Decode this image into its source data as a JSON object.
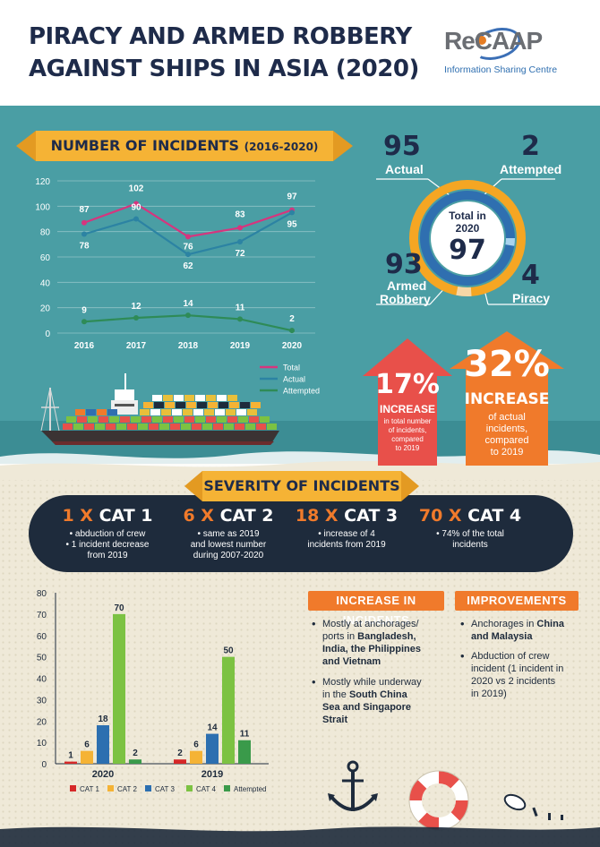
{
  "header": {
    "title_line1": "PIRACY AND ARMED ROBBERY",
    "title_line2": "AGAINST SHIPS IN ASIA (2020)",
    "logo_text": "ReCAAP",
    "logo_subtitle": "Information Sharing Centre"
  },
  "incidents_section": {
    "ribbon_title": "NUMBER OF INCIDENTS",
    "ribbon_years": "(2016-2020)"
  },
  "colors": {
    "total": "#d6357e",
    "actual": "#2c83a3",
    "attempted": "#2e8b57",
    "cat1": "#d62828",
    "cat2": "#f5b335",
    "cat3": "#2c6fb0",
    "cat4": "#7cc242",
    "attempted_bar": "#3a9a4a",
    "orange": "#f07a2b",
    "red": "#e8504a",
    "navy": "#1e2b3c"
  },
  "chart_data": [
    {
      "type": "line",
      "title": "NUMBER OF INCIDENTS (2016-2020)",
      "x": [
        "2016",
        "2017",
        "2018",
        "2019",
        "2020"
      ],
      "yticks": [
        "0",
        "20",
        "40",
        "60",
        "80",
        "100",
        "120"
      ],
      "ylim": [
        0,
        120
      ],
      "grid": true,
      "legend_position": "bottom-right",
      "series": [
        {
          "name": "Total",
          "values": [
            87,
            102,
            76,
            83,
            97
          ],
          "labels": [
            "87",
            "102",
            "76",
            "83",
            "97"
          ]
        },
        {
          "name": "Actual",
          "values": [
            78,
            90,
            62,
            72,
            95
          ],
          "labels": [
            "78",
            "90",
            "62",
            "72",
            "95"
          ]
        },
        {
          "name": "Attempted",
          "values": [
            9,
            12,
            14,
            11,
            2
          ],
          "labels": [
            "9",
            "12",
            "14",
            "11",
            "2"
          ]
        }
      ]
    },
    {
      "type": "bar",
      "categories": [
        "2020",
        "2019"
      ],
      "yticks": [
        "0",
        "10",
        "20",
        "30",
        "40",
        "50",
        "60",
        "70",
        "80"
      ],
      "ylim": [
        0,
        80
      ],
      "grid": false,
      "legend_position": "bottom",
      "series": [
        {
          "name": "CAT 1",
          "values": [
            1,
            2
          ],
          "labels": [
            "1",
            "2"
          ]
        },
        {
          "name": "CAT 2",
          "values": [
            6,
            6
          ],
          "labels": [
            "6",
            "6"
          ]
        },
        {
          "name": "CAT 3",
          "values": [
            18,
            14
          ],
          "labels": [
            "18",
            "14"
          ]
        },
        {
          "name": "CAT 4",
          "values": [
            70,
            50
          ],
          "labels": [
            "70",
            "50"
          ]
        },
        {
          "name": "Attempted",
          "values": [
            2,
            11
          ],
          "labels": [
            "2",
            "11"
          ]
        }
      ]
    }
  ],
  "stats": {
    "actual_value": "95",
    "actual_label": "Actual",
    "attempted_value": "2",
    "attempted_label": "Attempted",
    "armed_value": "93",
    "armed_label_1": "Armed",
    "armed_label_2": "Robbery",
    "piracy_value": "4",
    "piracy_label": "Piracy",
    "center_label_1": "Total in",
    "center_label_2": "2020",
    "center_value": "97"
  },
  "increase_17": {
    "pct": "17%",
    "word": "INCREASE",
    "desc_1": "in total number",
    "desc_2": "of incidents,",
    "desc_3": "compared",
    "desc_4": "to 2019"
  },
  "increase_32": {
    "pct": "32%",
    "word": "INCREASE",
    "desc_1": "of actual",
    "desc_2": "incidents,",
    "desc_3": "compared",
    "desc_4": "to 2019"
  },
  "severity": {
    "ribbon_title": "SEVERITY OF INCIDENTS",
    "cols": [
      {
        "count": "1 X",
        "cat": "CAT 1",
        "desc_1": "• abduction of crew",
        "desc_2": "• 1 incident decrease",
        "desc_3": "from 2019"
      },
      {
        "count": "6 X",
        "cat": "CAT 2",
        "desc_1": "• same as 2019",
        "desc_2": "and lowest number",
        "desc_3": "during 2007-2020"
      },
      {
        "count": "18 X",
        "cat": "CAT 3",
        "desc_1": "• increase of 4",
        "desc_2": "incidents from 2019",
        "desc_3": ""
      },
      {
        "count": "70 X",
        "cat": "CAT 4",
        "desc_1": "• 74% of the total",
        "desc_2": "incidents",
        "desc_3": ""
      }
    ]
  },
  "increase_panel": {
    "title": "INCREASE IN INCIDENTS",
    "b1_pre": "Mostly at anchorages/",
    "b1_mid": "ports in ",
    "b1_bold_1": "Bangladesh,",
    "b1_bold_2": "India, the Philippines",
    "b1_bold_3": "and Vietnam",
    "b2_1": "Mostly while underway",
    "b2_2": "in the ",
    "b2_bold_1": "South China",
    "b2_bold_2": "Sea and Singapore",
    "b2_bold_3": "Strait"
  },
  "improvements_panel": {
    "title": "IMPROVEMENTS",
    "b1_1": "Anchorages in ",
    "b1_bold_1": "China",
    "b1_bold_2": "and Malaysia",
    "b2_1": "Abduction of crew",
    "b2_2": "incident (1 incident in",
    "b2_3": "2020 vs 2 incidents",
    "b2_4": "in 2019)"
  }
}
